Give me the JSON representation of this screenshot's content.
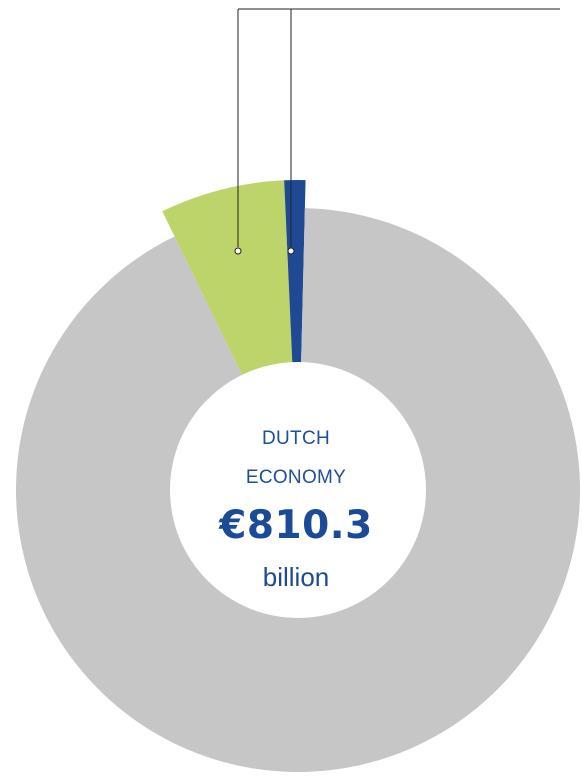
{
  "chart_data": {
    "type": "pie",
    "donut": true,
    "center_label": {
      "line1": "DUTCH",
      "line2": "ECONOMY",
      "value": "€810.3",
      "unit": "billion"
    },
    "slices": [
      {
        "share": 0.065,
        "color": "#bdd46a"
      },
      {
        "share": 0.011,
        "color": "#1f4a93"
      },
      {
        "share": 0.924,
        "color": "#c6c6c6"
      }
    ],
    "callouts": [
      {
        "slice": 0
      },
      {
        "slice": 1
      }
    ]
  }
}
